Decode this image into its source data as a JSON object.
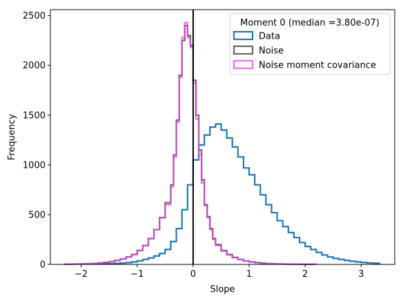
{
  "chart_data": {
    "type": "histogram",
    "title": "",
    "xlabel": "Slope",
    "ylabel": "Frequency",
    "xlim": [
      -2.55,
      3.6
    ],
    "ylim": [
      0,
      2560
    ],
    "xticks": [
      -2,
      -1,
      0,
      1,
      2,
      3
    ],
    "xtick_labels": [
      "−2",
      "−1",
      "0",
      "1",
      "2",
      "3"
    ],
    "yticks": [
      0,
      500,
      1000,
      1500,
      2000,
      2500
    ],
    "ytick_labels": [
      "0",
      "500",
      "1000",
      "1500",
      "2000",
      "2500"
    ],
    "grid": false,
    "legend": {
      "title": "Moment 0 (median =3.80e-07)",
      "placement": "top-right"
    },
    "vline": {
      "x": 0,
      "color": "#000000"
    },
    "series": [
      {
        "name": "Data",
        "color": "#1f77b4",
        "edges": [
          -1.8,
          -1.7,
          -1.6,
          -1.5,
          -1.4,
          -1.3,
          -1.2,
          -1.1,
          -1.0,
          -0.9,
          -0.8,
          -0.7,
          -0.6,
          -0.5,
          -0.4,
          -0.3,
          -0.2,
          -0.1,
          0.0,
          0.1,
          0.2,
          0.3,
          0.4,
          0.5,
          0.6,
          0.7,
          0.8,
          0.9,
          1.0,
          1.1,
          1.2,
          1.3,
          1.4,
          1.5,
          1.6,
          1.7,
          1.8,
          1.9,
          2.0,
          2.1,
          2.2,
          2.3,
          2.4,
          2.5,
          2.6,
          2.7,
          2.8,
          2.9,
          3.0,
          3.1,
          3.2,
          3.3,
          3.33
        ],
        "counts": [
          4,
          5,
          6,
          8,
          10,
          13,
          18,
          25,
          35,
          50,
          65,
          85,
          110,
          150,
          230,
          360,
          550,
          800,
          1050,
          1200,
          1300,
          1380,
          1410,
          1350,
          1270,
          1180,
          1080,
          970,
          900,
          800,
          700,
          600,
          520,
          440,
          380,
          320,
          270,
          220,
          180,
          150,
          120,
          95,
          75,
          60,
          50,
          40,
          32,
          25,
          20,
          15,
          12,
          10
        ]
      },
      {
        "name": "Noise",
        "color": "#555555",
        "edges": [
          -2.3,
          -2.2,
          -2.1,
          -2.0,
          -1.9,
          -1.8,
          -1.7,
          -1.6,
          -1.5,
          -1.4,
          -1.3,
          -1.2,
          -1.1,
          -1.0,
          -0.9,
          -0.8,
          -0.7,
          -0.6,
          -0.5,
          -0.4,
          -0.35,
          -0.3,
          -0.25,
          -0.2,
          -0.15,
          -0.1,
          -0.05,
          0.0,
          0.05,
          0.1,
          0.15,
          0.2,
          0.25,
          0.3,
          0.35,
          0.4,
          0.5,
          0.6,
          0.7,
          0.8,
          0.9,
          1.0,
          1.1,
          1.2,
          1.3,
          1.4,
          1.5,
          1.6,
          1.7,
          1.8,
          1.9,
          2.0,
          2.1,
          2.2
        ],
        "counts": [
          2,
          3,
          4,
          5,
          7,
          10,
          14,
          20,
          28,
          40,
          55,
          75,
          100,
          140,
          190,
          260,
          350,
          470,
          620,
          800,
          1100,
          1450,
          1900,
          2250,
          2400,
          2300,
          2200,
          1850,
          1500,
          1150,
          850,
          600,
          480,
          360,
          260,
          200,
          140,
          100,
          70,
          50,
          35,
          25,
          18,
          12,
          8,
          6,
          4,
          3,
          2,
          2,
          1,
          1,
          1
        ]
      },
      {
        "name": "Noise moment covariance",
        "color": "#e040e0",
        "edges": [
          -2.3,
          -2.2,
          -2.1,
          -2.0,
          -1.9,
          -1.8,
          -1.7,
          -1.6,
          -1.5,
          -1.4,
          -1.3,
          -1.2,
          -1.1,
          -1.0,
          -0.9,
          -0.8,
          -0.7,
          -0.6,
          -0.5,
          -0.4,
          -0.35,
          -0.3,
          -0.25,
          -0.2,
          -0.15,
          -0.1,
          -0.05,
          0.0,
          0.05,
          0.1,
          0.15,
          0.2,
          0.25,
          0.3,
          0.35,
          0.4,
          0.5,
          0.6,
          0.7,
          0.8,
          0.9,
          1.0,
          1.1,
          1.2,
          1.3,
          1.4,
          1.5,
          1.6,
          1.7,
          1.8,
          1.9,
          2.0,
          2.1,
          2.2
        ],
        "counts": [
          2,
          3,
          4,
          5,
          7,
          10,
          14,
          20,
          28,
          40,
          55,
          75,
          100,
          140,
          190,
          260,
          350,
          470,
          600,
          780,
          1080,
          1430,
          1880,
          2280,
          2430,
          2280,
          2180,
          1820,
          1460,
          1100,
          820,
          590,
          470,
          350,
          250,
          190,
          135,
          95,
          68,
          48,
          34,
          24,
          17,
          12,
          8,
          6,
          4,
          3,
          2,
          2,
          1,
          1,
          1
        ]
      }
    ]
  }
}
